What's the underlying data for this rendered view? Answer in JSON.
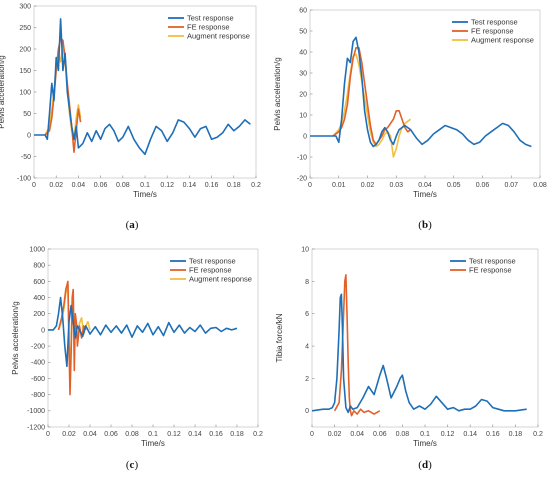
{
  "colors": {
    "test": "#1f6fb7",
    "fe": "#e2602a",
    "augment": "#f0c040"
  },
  "chart_data": [
    {
      "id": "a",
      "caption": "a",
      "type": "line",
      "xlabel": "Time/s",
      "ylabel": "Pelvis acceleration/g",
      "xlim": [
        0,
        0.2
      ],
      "ylim": [
        -100,
        300
      ],
      "xticks": [
        "0",
        "0.02",
        "0.04",
        "0.06",
        "0.08",
        "0.1",
        "0.12",
        "0.14",
        "0.16",
        "0.18",
        "0.2"
      ],
      "yticks": [
        "-100",
        "-50",
        "0",
        "50",
        "100",
        "150",
        "200",
        "250",
        "300"
      ],
      "legend": "top-right",
      "series": [
        {
          "name": "Test response",
          "color": "#1f6fb7",
          "x": [
            0.0,
            0.005,
            0.01,
            0.012,
            0.014,
            0.016,
            0.018,
            0.02,
            0.022,
            0.024,
            0.025,
            0.026,
            0.028,
            0.03,
            0.032,
            0.034,
            0.036,
            0.038,
            0.04,
            0.044,
            0.048,
            0.052,
            0.056,
            0.06,
            0.064,
            0.068,
            0.072,
            0.076,
            0.08,
            0.085,
            0.09,
            0.095,
            0.1,
            0.105,
            0.11,
            0.115,
            0.12,
            0.125,
            0.13,
            0.135,
            0.14,
            0.145,
            0.15,
            0.155,
            0.16,
            0.165,
            0.17,
            0.175,
            0.18,
            0.185,
            0.19,
            0.195
          ],
          "y": [
            0,
            0,
            0,
            -10,
            50,
            120,
            80,
            180,
            150,
            270,
            210,
            150,
            190,
            100,
            60,
            20,
            -10,
            20,
            -30,
            -20,
            5,
            -15,
            10,
            -10,
            15,
            25,
            10,
            -15,
            -5,
            20,
            -10,
            -30,
            -45,
            -10,
            20,
            10,
            -15,
            5,
            35,
            30,
            15,
            -5,
            15,
            20,
            -10,
            -5,
            5,
            25,
            10,
            20,
            35,
            25
          ]
        },
        {
          "name": "FE response",
          "color": "#e2602a",
          "x": [
            0.01,
            0.014,
            0.016,
            0.018,
            0.02,
            0.022,
            0.024,
            0.026,
            0.028,
            0.03,
            0.032,
            0.034,
            0.036,
            0.038,
            0.04,
            0.042
          ],
          "y": [
            0,
            10,
            40,
            90,
            150,
            200,
            225,
            220,
            180,
            120,
            70,
            20,
            -40,
            10,
            60,
            30
          ]
        },
        {
          "name": "Augment response",
          "color": "#f0c040",
          "x": [
            0.01,
            0.014,
            0.016,
            0.018,
            0.02,
            0.022,
            0.024,
            0.026,
            0.028,
            0.03,
            0.032,
            0.034,
            0.036,
            0.038,
            0.04,
            0.042
          ],
          "y": [
            0,
            20,
            60,
            100,
            160,
            190,
            170,
            210,
            170,
            110,
            50,
            10,
            -10,
            40,
            70,
            40
          ]
        }
      ]
    },
    {
      "id": "b",
      "caption": "b",
      "type": "line",
      "xlabel": "Time/s",
      "ylabel": "Pelvis acceleration/g",
      "xlim": [
        0,
        0.08
      ],
      "ylim": [
        -20,
        60
      ],
      "xticks": [
        "0",
        "0.01",
        "0.02",
        "0.03",
        "0.04",
        "0.05",
        "0.06",
        "0.07",
        "0.08"
      ],
      "yticks": [
        "-20",
        "-10",
        "0",
        "10",
        "20",
        "30",
        "40",
        "50",
        "60"
      ],
      "legend": "top-right",
      "series": [
        {
          "name": "Test response",
          "color": "#1f6fb7",
          "x": [
            0.0,
            0.005,
            0.009,
            0.01,
            0.011,
            0.012,
            0.013,
            0.014,
            0.015,
            0.016,
            0.017,
            0.018,
            0.019,
            0.02,
            0.021,
            0.022,
            0.023,
            0.024,
            0.025,
            0.026,
            0.027,
            0.028,
            0.029,
            0.03,
            0.031,
            0.032,
            0.033,
            0.035,
            0.037,
            0.039,
            0.041,
            0.043,
            0.045,
            0.047,
            0.049,
            0.051,
            0.053,
            0.055,
            0.057,
            0.059,
            0.061,
            0.063,
            0.065,
            0.067,
            0.069,
            0.071,
            0.073,
            0.075,
            0.077
          ],
          "y": [
            0,
            0,
            0,
            -3,
            8,
            25,
            37,
            35,
            45,
            47,
            40,
            28,
            12,
            3,
            -3,
            -5,
            -4,
            -2,
            2,
            4,
            2,
            -2,
            -4,
            0,
            3,
            4,
            5,
            3,
            -1,
            -4,
            -2,
            1,
            3,
            5,
            4,
            3,
            1,
            -2,
            -4,
            -3,
            0,
            2,
            4,
            6,
            5,
            2,
            -2,
            -4,
            -5
          ]
        },
        {
          "name": "FE response",
          "color": "#e2602a",
          "x": [
            0.008,
            0.01,
            0.011,
            0.012,
            0.013,
            0.014,
            0.015,
            0.016,
            0.017,
            0.018,
            0.019,
            0.02,
            0.021,
            0.022,
            0.023,
            0.024,
            0.025,
            0.026,
            0.027,
            0.028,
            0.029,
            0.03,
            0.031,
            0.032,
            0.033,
            0.034,
            0.035
          ],
          "y": [
            0,
            2,
            4,
            8,
            15,
            28,
            37,
            42,
            42,
            35,
            25,
            15,
            5,
            -2,
            -4,
            -2,
            0,
            3,
            4,
            6,
            8,
            12,
            12,
            8,
            4,
            2,
            3
          ]
        },
        {
          "name": "Augment response",
          "color": "#f0c040",
          "x": [
            0.008,
            0.01,
            0.011,
            0.012,
            0.013,
            0.014,
            0.015,
            0.016,
            0.017,
            0.018,
            0.019,
            0.02,
            0.021,
            0.022,
            0.023,
            0.024,
            0.025,
            0.026,
            0.027,
            0.028,
            0.029,
            0.03,
            0.031,
            0.032,
            0.033,
            0.034,
            0.035
          ],
          "y": [
            0,
            3,
            6,
            12,
            20,
            30,
            38,
            39,
            34,
            26,
            18,
            10,
            2,
            -3,
            -5,
            -4,
            -2,
            1,
            2,
            0,
            -10,
            -6,
            0,
            4,
            6,
            7,
            8
          ]
        }
      ]
    },
    {
      "id": "c",
      "caption": "c",
      "type": "line",
      "xlabel": "Time/s",
      "ylabel": "Pelvis acceleration/g",
      "xlim": [
        0,
        0.2
      ],
      "ylim": [
        -1200,
        1000
      ],
      "xticks": [
        "0",
        "0.02",
        "0.04",
        "0.06",
        "0.08",
        "0.1",
        "0.12",
        "0.14",
        "0.16",
        "0.18",
        "0.2"
      ],
      "yticks": [
        "-1200",
        "-1000",
        "-800",
        "-600",
        "-400",
        "-200",
        "0",
        "200",
        "400",
        "600",
        "800",
        "1000"
      ],
      "legend": "top-right",
      "series": [
        {
          "name": "Test response",
          "color": "#1f6fb7",
          "x": [
            0.0,
            0.005,
            0.008,
            0.01,
            0.012,
            0.014,
            0.016,
            0.018,
            0.02,
            0.022,
            0.024,
            0.026,
            0.028,
            0.03,
            0.033,
            0.036,
            0.04,
            0.045,
            0.05,
            0.055,
            0.06,
            0.065,
            0.07,
            0.075,
            0.08,
            0.085,
            0.09,
            0.095,
            0.1,
            0.105,
            0.11,
            0.115,
            0.12,
            0.125,
            0.13,
            0.135,
            0.14,
            0.145,
            0.15,
            0.155,
            0.16,
            0.165,
            0.17,
            0.175,
            0.18
          ],
          "y": [
            0,
            0,
            50,
            200,
            400,
            150,
            -200,
            -450,
            100,
            300,
            100,
            -100,
            50,
            0,
            -80,
            50,
            -50,
            40,
            -60,
            60,
            -30,
            50,
            -40,
            60,
            -90,
            50,
            -30,
            80,
            -60,
            40,
            -70,
            90,
            -30,
            60,
            -40,
            30,
            -20,
            60,
            -40,
            20,
            30,
            -20,
            20,
            0,
            20
          ]
        },
        {
          "name": "FE response",
          "color": "#e2602a",
          "x": [
            0.01,
            0.013,
            0.015,
            0.017,
            0.019,
            0.02,
            0.021,
            0.022,
            0.023,
            0.024,
            0.025,
            0.026,
            0.027,
            0.028,
            0.03,
            0.032,
            0.034,
            0.036
          ],
          "y": [
            0,
            150,
            300,
            500,
            600,
            -200,
            -800,
            -300,
            400,
            500,
            -500,
            200,
            100,
            -200,
            50,
            -100,
            50,
            0
          ]
        },
        {
          "name": "Augment response",
          "color": "#f0c040",
          "x": [
            0.01,
            0.013,
            0.015,
            0.017,
            0.019,
            0.02,
            0.021,
            0.022,
            0.023,
            0.024,
            0.025,
            0.026,
            0.027,
            0.028,
            0.03,
            0.032,
            0.034,
            0.036,
            0.038,
            0.04
          ],
          "y": [
            0,
            100,
            250,
            450,
            550,
            0,
            -600,
            -200,
            300,
            400,
            -300,
            150,
            80,
            -150,
            80,
            150,
            -50,
            50,
            100,
            0
          ]
        }
      ]
    },
    {
      "id": "d",
      "caption": "d",
      "type": "line",
      "xlabel": "Time/s",
      "ylabel": "Tibia force/kN",
      "xlim": [
        0,
        0.2
      ],
      "ylim": [
        -1,
        10
      ],
      "xticks": [
        "0",
        "0.02",
        "0.04",
        "0.06",
        "0.08",
        "0.1",
        "0.12",
        "0.14",
        "0.16",
        "0.18",
        "0.2"
      ],
      "yticks": [
        "0",
        "2",
        "4",
        "6",
        "8",
        "10"
      ],
      "legend": "top-right",
      "series": [
        {
          "name": "Test response",
          "color": "#1f6fb7",
          "x": [
            0.0,
            0.01,
            0.015,
            0.018,
            0.02,
            0.022,
            0.024,
            0.025,
            0.026,
            0.027,
            0.028,
            0.03,
            0.032,
            0.034,
            0.036,
            0.04,
            0.045,
            0.05,
            0.055,
            0.06,
            0.063,
            0.066,
            0.07,
            0.075,
            0.078,
            0.08,
            0.083,
            0.086,
            0.09,
            0.095,
            0.1,
            0.105,
            0.11,
            0.115,
            0.12,
            0.125,
            0.13,
            0.135,
            0.14,
            0.145,
            0.15,
            0.155,
            0.16,
            0.165,
            0.17,
            0.18,
            0.19
          ],
          "y": [
            0,
            0.1,
            0.1,
            0.2,
            0.5,
            2.0,
            5.0,
            7.0,
            7.2,
            5.0,
            2.0,
            0.2,
            -0.1,
            0.3,
            0.1,
            0.2,
            0.8,
            1.5,
            1.0,
            2.2,
            2.8,
            2.0,
            0.8,
            1.5,
            2.0,
            2.2,
            1.2,
            0.5,
            0.1,
            0.3,
            0.1,
            0.4,
            0.9,
            0.5,
            0.1,
            0.2,
            0.0,
            0.1,
            0.1,
            0.3,
            0.7,
            0.6,
            0.2,
            0.1,
            0.0,
            0.0,
            0.1
          ]
        },
        {
          "name": "FE response",
          "color": "#e2602a",
          "x": [
            0.02,
            0.024,
            0.026,
            0.028,
            0.029,
            0.03,
            0.031,
            0.032,
            0.033,
            0.034,
            0.035,
            0.037,
            0.04,
            0.043,
            0.046,
            0.05,
            0.055,
            0.06
          ],
          "y": [
            0,
            0.5,
            2.5,
            6.0,
            8.0,
            8.4,
            6.0,
            3.0,
            0.8,
            0.0,
            -0.3,
            0.0,
            -0.2,
            0.1,
            -0.1,
            0.0,
            -0.2,
            0.0
          ]
        }
      ]
    }
  ]
}
